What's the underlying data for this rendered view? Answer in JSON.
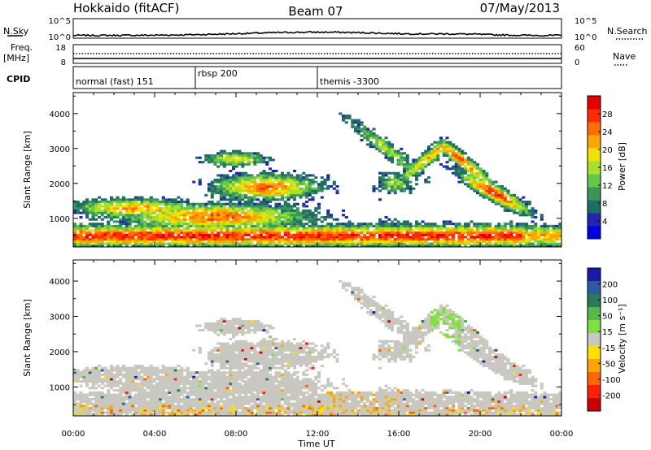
{
  "header": {
    "title": "Hokkaido (fitACF)",
    "beam": "Beam 07",
    "date": "07/May/2013"
  },
  "top_panels": {
    "nsky_label": "N.Sky",
    "nsearch_label": "N.Search",
    "nsky_ticks": [
      "10^5",
      "10^0"
    ],
    "nsearch_ticks": [
      "10^5",
      "10^0"
    ],
    "freq_label": "Freq.",
    "freq_unit": "[MHz]",
    "freq_ticks": [
      "18",
      "8"
    ],
    "nave_label": "Nave",
    "nave_ticks": [
      "60",
      "0"
    ],
    "cpid_label": "CPID",
    "cpid_segments": [
      {
        "label": "normal (fast) 151",
        "start_hour": 0
      },
      {
        "label": "rbsp 200",
        "start_hour": 6
      },
      {
        "label": "themis -3300",
        "start_hour": 12
      }
    ]
  },
  "x_axis": {
    "label": "Time UT",
    "ticks": [
      "00:00",
      "04:00",
      "08:00",
      "12:00",
      "16:00",
      "20:00",
      "00:00"
    ],
    "range_hours": [
      0,
      24
    ]
  },
  "chart_data": [
    {
      "type": "heatmap",
      "ylabel": "Slant Range [km]",
      "yticks": [
        1000,
        2000,
        3000,
        4000
      ],
      "ylim": [
        180,
        4600
      ],
      "colorbar": {
        "label": "Power [dB]",
        "ticks": [
          "4",
          "8",
          "12",
          "16",
          "20",
          "24",
          "28"
        ],
        "colors": [
          "#0000e6",
          "#2323b4",
          "#1e6e64",
          "#3c965a",
          "#66c84b",
          "#a6e12d",
          "#f0e100",
          "#ffa500",
          "#ff6e00",
          "#ff2d00",
          "#e60000"
        ]
      }
    },
    {
      "type": "heatmap",
      "ylabel": "Slant Range [km]",
      "yticks": [
        1000,
        2000,
        3000,
        4000
      ],
      "ylim": [
        180,
        4600
      ],
      "colorbar": {
        "label": "Velocity [m s⁻¹]",
        "ticks": [
          "200",
          "100",
          "50",
          "15",
          "-15",
          "-50",
          "-100",
          "-200"
        ],
        "colors": [
          "#1a1aaa",
          "#2e5aa0",
          "#2a7a5a",
          "#55b94a",
          "#7fe03c",
          "#c8c8c0",
          "#ffe000",
          "#ffa500",
          "#ff6600",
          "#ff2000",
          "#cc0000"
        ]
      }
    }
  ]
}
